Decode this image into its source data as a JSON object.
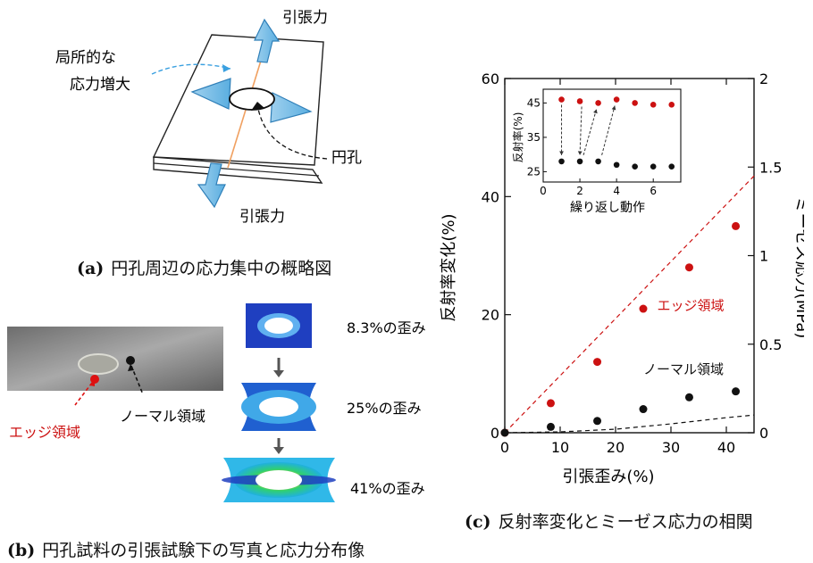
{
  "panel_a": {
    "label_top": "引張力",
    "label_bottom": "引張力",
    "annotation_line1": "局所的な",
    "annotation_line2": "応力増大",
    "hole_label": "円孔",
    "caption_prefix": "(a)",
    "caption": "円孔周辺の応力集中の概略図"
  },
  "panel_b": {
    "edge_label": "エッジ領域",
    "normal_label": "ノーマル領域",
    "strain_labels": [
      "8.3%の歪み",
      "25%の歪み",
      "41%の歪み"
    ],
    "caption_prefix": "(b)",
    "caption": "円孔試料の引張試験下の写真と応力分布像"
  },
  "panel_c": {
    "caption_prefix": "(c)",
    "caption": "反射率変化とミーゼス応力の相関"
  },
  "chart_data": [
    {
      "type": "scatter",
      "xlabel": "引張歪み(%)",
      "ylabel": "反射率変化(%)",
      "y2label": "ミーゼス応力(MPa)",
      "xlim": [
        0,
        45
      ],
      "ylim": [
        0,
        60
      ],
      "y2lim": [
        0,
        2
      ],
      "xticks": [
        0,
        10,
        20,
        30,
        40
      ],
      "yticks": [
        0,
        20,
        40,
        60
      ],
      "y2ticks": [
        "0",
        "0.5",
        "1",
        "1.5",
        "2"
      ],
      "y2tickvals": [
        0,
        0.5,
        1,
        1.5,
        2
      ],
      "series": [
        {
          "name": "エッジ領域",
          "color": "#cc1111",
          "x": [
            0,
            8.3,
            16.7,
            25,
            33.3,
            41.7
          ],
          "y": [
            0,
            5,
            12,
            21,
            28,
            35
          ]
        },
        {
          "name": "ノーマル領域",
          "color": "#111111",
          "x": [
            0,
            8.3,
            16.7,
            25,
            33.3,
            41.7
          ],
          "y": [
            0,
            1,
            2,
            4,
            6,
            7
          ]
        }
      ],
      "stress_lines": [
        {
          "region": "edge",
          "color": "#cc1111",
          "style": "dashed",
          "x": [
            0,
            45
          ],
          "y2": [
            0,
            1.45
          ]
        },
        {
          "region": "normal",
          "color": "#111111",
          "style": "dashed",
          "x": [
            0,
            10,
            20,
            30,
            40,
            45
          ],
          "y2": [
            0,
            0.005,
            0.02,
            0.05,
            0.085,
            0.1
          ]
        }
      ]
    },
    {
      "type": "scatter",
      "xlabel": "繰り返し動作",
      "ylabel": "反射率(%)",
      "xlim": [
        0,
        7.5
      ],
      "ylim": [
        22,
        49
      ],
      "xticks": [
        0,
        2,
        4,
        6
      ],
      "yticks": [
        25,
        35,
        45
      ],
      "series": [
        {
          "color": "#cc1111",
          "x": [
            1,
            2,
            3,
            4,
            5,
            6,
            7
          ],
          "y": [
            46,
            45.5,
            45,
            46,
            45,
            44.5,
            44.5
          ]
        },
        {
          "color": "#111111",
          "x": [
            1,
            2,
            3,
            4,
            5,
            6,
            7
          ],
          "y": [
            28,
            28,
            28,
            27,
            26.5,
            26.5,
            26.5
          ]
        }
      ]
    }
  ]
}
